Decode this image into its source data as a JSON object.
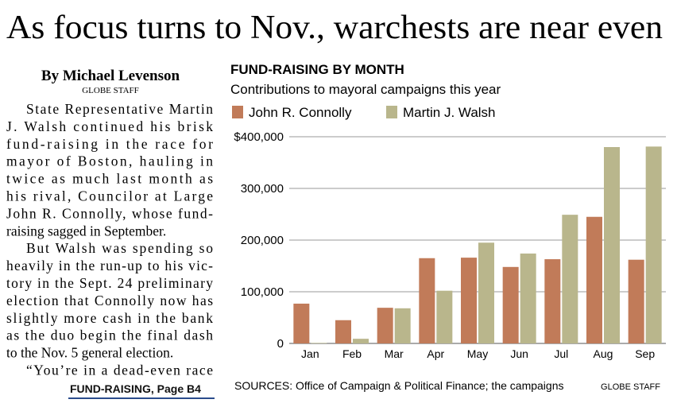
{
  "headline": "As focus turns to Nov., warchests are near even",
  "byline": "By Michael Levenson",
  "byline_credit": "GLOBE STAFF",
  "article": {
    "paragraphs": [
      [
        "State Representative Martin",
        "J. Walsh continued his brisk",
        "fund-raising in the race for",
        "mayor of Boston, hauling in",
        "twice as much last month as",
        "his rival, Councilor at Large",
        "John R. Connolly, whose fund-",
        "raising sagged in September."
      ],
      [
        "But Walsh was spending so",
        "heavily in the run-up to his vic-",
        "tory in the Sept. 24 preliminary",
        "election that Connolly now has",
        "slightly more cash in the bank",
        "as the duo begin the final dash",
        "to the Nov. 5 general election."
      ],
      [
        "“You’re in a dead-even race"
      ]
    ]
  },
  "jump": "FUND-RAISING, Page B4",
  "chart_data": {
    "type": "bar",
    "title": "FUND-RAISING BY MONTH",
    "subtitle": "Contributions to mayoral campaigns this year",
    "categories": [
      "Jan",
      "Feb",
      "Mar",
      "Apr",
      "May",
      "Jun",
      "Jul",
      "Aug",
      "Sep"
    ],
    "series": [
      {
        "name": "John R. Connolly",
        "color": "#c17b59",
        "values": [
          77000,
          45000,
          69000,
          165000,
          166000,
          148000,
          163000,
          245000,
          162000
        ]
      },
      {
        "name": "Martin J. Walsh",
        "color": "#b9b68c",
        "values": [
          1000,
          9000,
          68000,
          102000,
          195000,
          174000,
          249000,
          380000,
          381000
        ]
      }
    ],
    "ylim": [
      0,
      400000
    ],
    "yticks": [
      0,
      {
        "value": 100000,
        "label": "100,000"
      },
      {
        "value": 200000,
        "label": "200,000"
      },
      {
        "value": 300000,
        "label": "300,000"
      },
      {
        "value": 400000,
        "label": "$400,000"
      }
    ],
    "grid": true,
    "source": "SOURCES: Office of Campaign & Political Finance; the campaigns",
    "credit": "GLOBE STAFF"
  }
}
